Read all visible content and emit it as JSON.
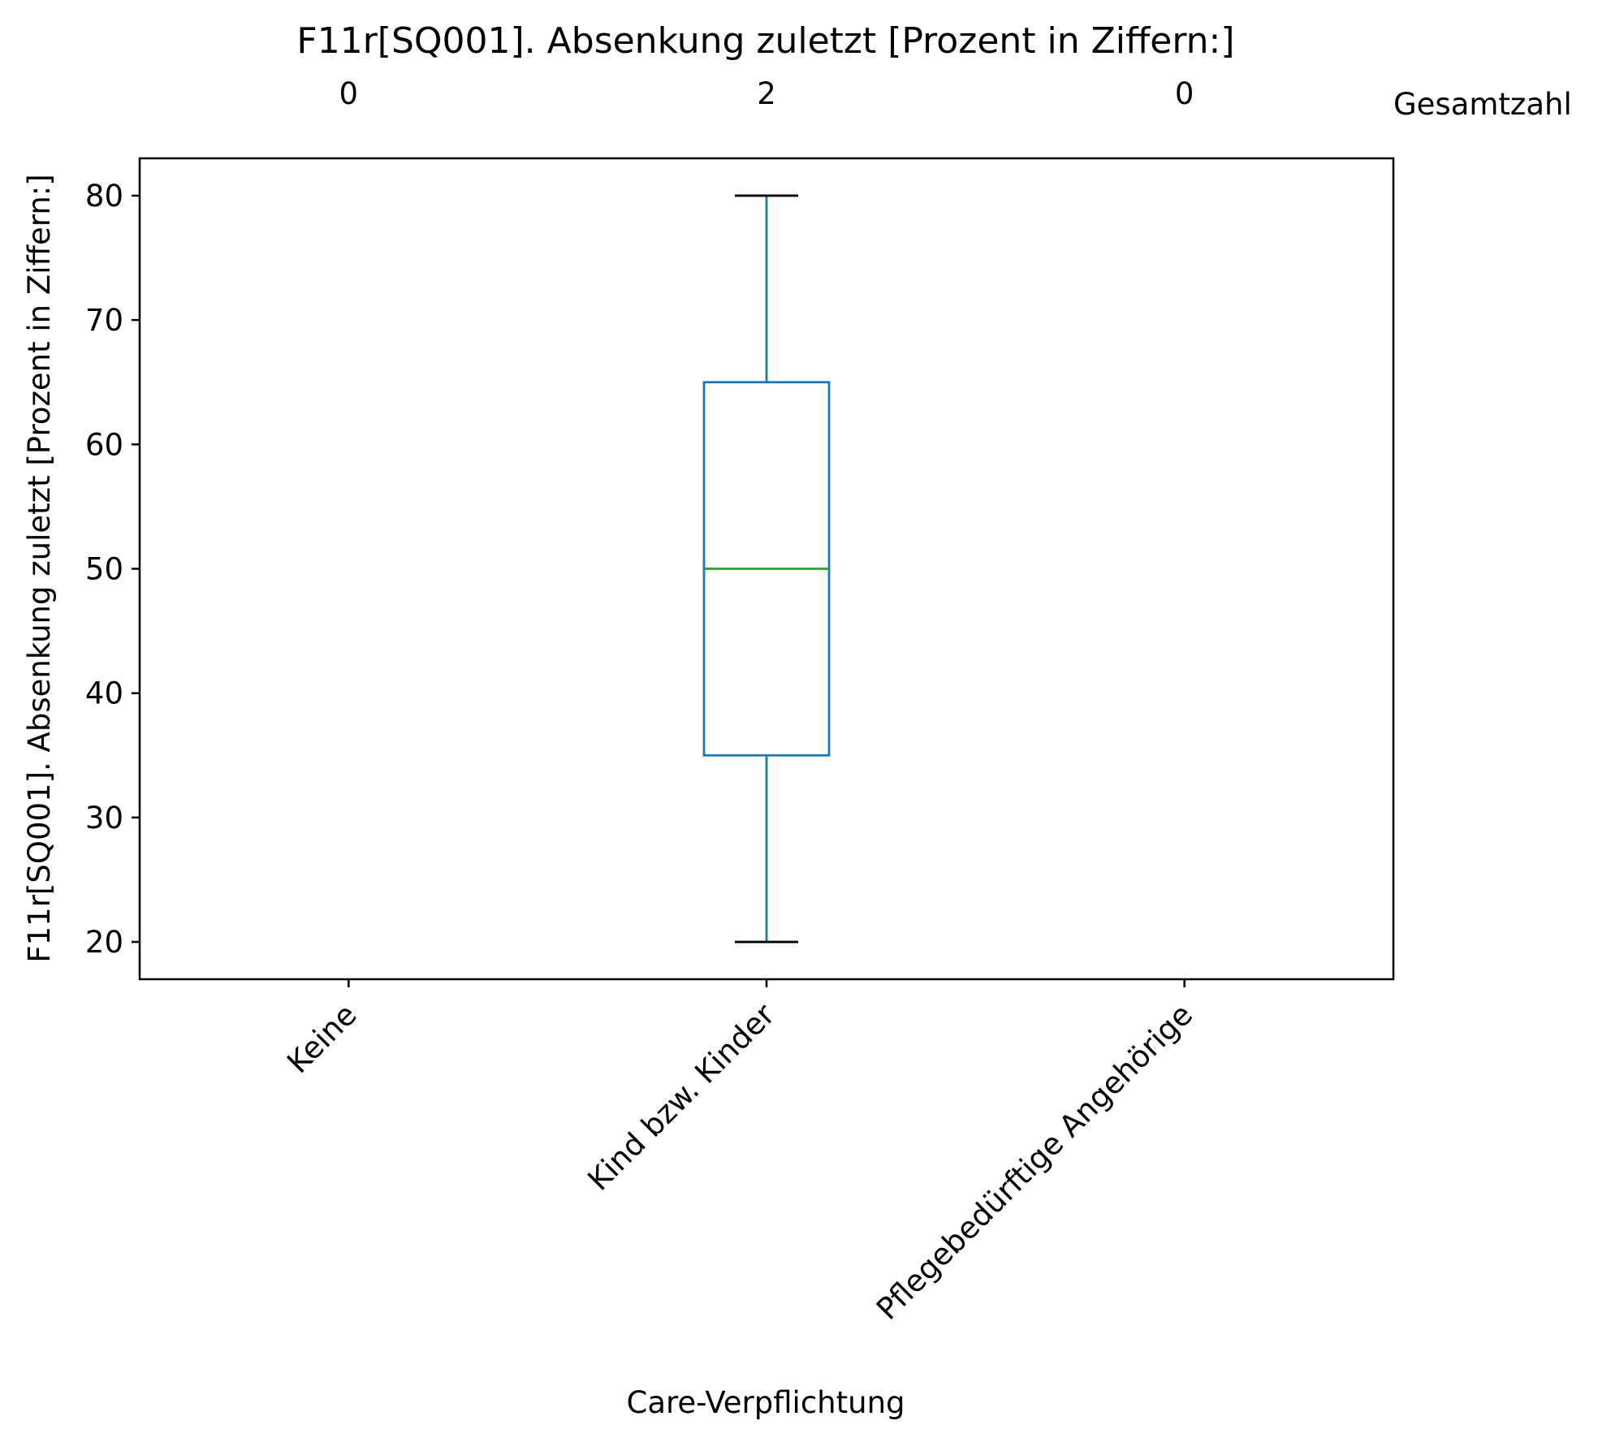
{
  "chart_data": {
    "type": "box",
    "title": "F11r[SQ001]. Absenkung zuletzt [Prozent in Ziffern:]",
    "xlabel": "Care-Verpflichtung",
    "ylabel": "F11r[SQ001]. Absenkung zuletzt [Prozent in Ziffern:]",
    "ylim": [
      17,
      83
    ],
    "yticks": [
      20,
      30,
      40,
      50,
      60,
      70,
      80
    ],
    "categories": [
      "Keine",
      "Kind bzw. Kinder",
      "Pflegebedürftige Angehörige"
    ],
    "counts": [
      0,
      2,
      0
    ],
    "counts_label": "Gesamtzahl",
    "boxes": [
      null,
      {
        "min": 20,
        "q1": 35,
        "median": 50,
        "q3": 65,
        "max": 80
      },
      null
    ],
    "grid": false,
    "colors": {
      "box": "#1f77b4",
      "median": "#2ca02c",
      "caps": "#000000",
      "axes": "#000000"
    }
  }
}
